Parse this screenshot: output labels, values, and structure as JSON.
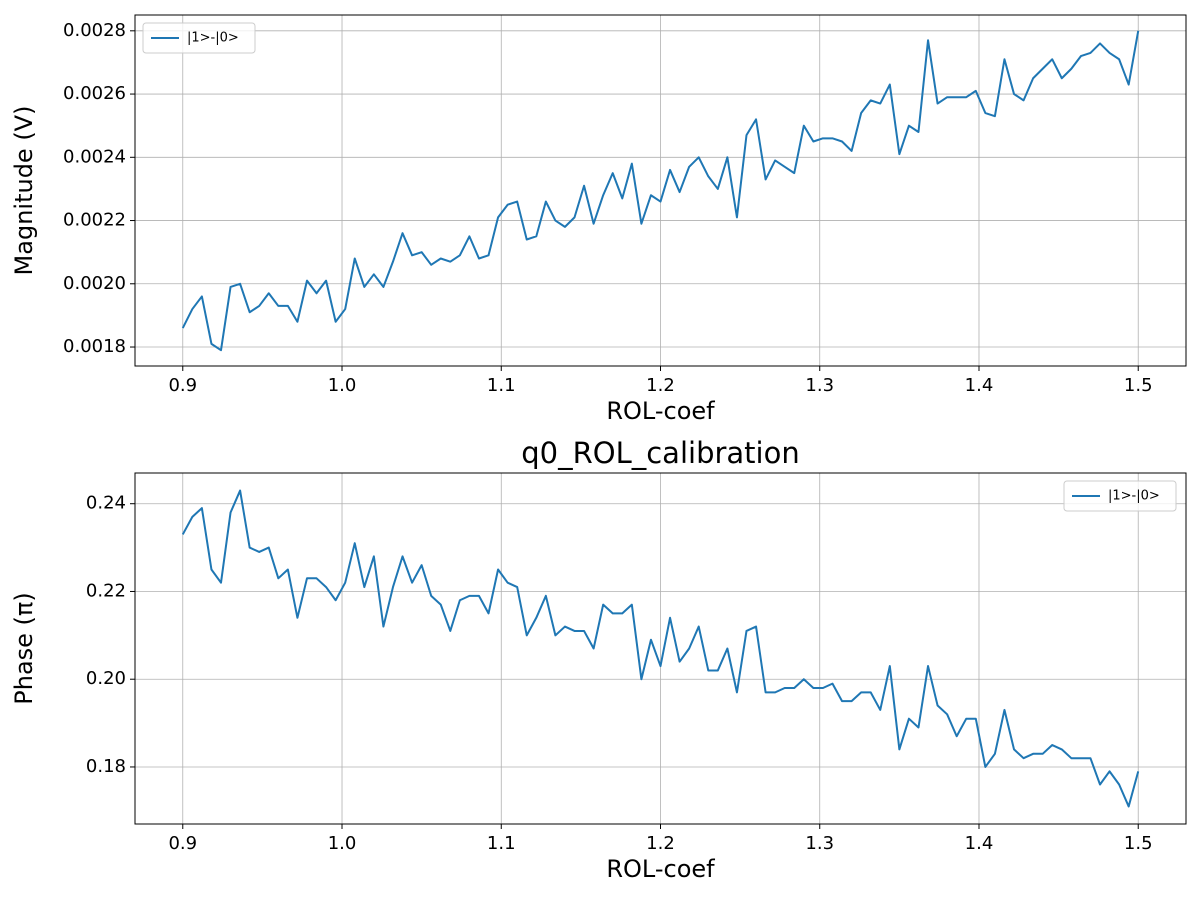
{
  "chart_data": [
    {
      "type": "line",
      "xlabel": "ROL-coef",
      "ylabel": "Magnitude (V)",
      "legend": "upper left",
      "grid": true,
      "xlim": [
        0.87,
        1.53
      ],
      "xticks": [
        0.9,
        {
          "value": 1,
          "label": "1.0"
        },
        1.1,
        1.2,
        1.3,
        1.4,
        1.5
      ],
      "ylim": [
        0.00174,
        0.00285
      ],
      "yticks": [
        0.0018,
        {
          "value": 0.002,
          "label": "0.0020"
        },
        0.0022,
        0.0024,
        0.0026,
        0.0028
      ],
      "x": [
        0.9,
        0.906,
        0.912,
        0.918,
        0.924,
        0.93,
        0.936,
        0.942,
        0.948,
        0.954,
        0.96,
        0.966,
        0.972,
        0.978,
        0.984,
        0.99,
        0.996,
        1.002,
        1.008,
        1.014,
        1.02,
        1.026,
        1.032,
        1.038,
        1.044,
        1.05,
        1.056,
        1.062,
        1.068,
        1.074,
        1.08,
        1.086,
        1.092,
        1.098,
        1.104,
        1.11,
        1.116,
        1.122,
        1.128,
        1.134,
        1.14,
        1.146,
        1.152,
        1.158,
        1.164,
        1.17,
        1.176,
        1.182,
        1.188,
        1.194,
        1.2,
        1.206,
        1.212,
        1.218,
        1.224,
        1.23,
        1.236,
        1.242,
        1.248,
        1.254,
        1.26,
        1.266,
        1.272,
        1.278,
        1.284,
        1.29,
        1.296,
        1.302,
        1.308,
        1.314,
        1.32,
        1.326,
        1.332,
        1.338,
        1.344,
        1.35,
        1.356,
        1.362,
        1.368,
        1.374,
        1.38,
        1.386,
        1.392,
        1.398,
        1.404,
        1.41,
        1.416,
        1.422,
        1.428,
        1.434,
        1.44,
        1.446,
        1.452,
        1.458,
        1.464,
        1.47,
        1.476,
        1.482,
        1.488,
        1.494,
        1.5
      ],
      "series": [
        {
          "name": "|1>-|0>",
          "color": "#1f77b4",
          "values": [
            0.00186,
            0.00192,
            0.00196,
            0.00181,
            0.00179,
            0.00199,
            0.002,
            0.00191,
            0.00193,
            0.00197,
            0.00193,
            0.00193,
            0.00188,
            0.00201,
            0.00197,
            0.00201,
            0.00188,
            0.00192,
            0.00208,
            0.00199,
            0.00203,
            0.00199,
            0.00207,
            0.00216,
            0.00209,
            0.0021,
            0.00206,
            0.00208,
            0.00207,
            0.00209,
            0.00215,
            0.00208,
            0.00209,
            0.00221,
            0.00225,
            0.00226,
            0.00214,
            0.00215,
            0.00226,
            0.0022,
            0.00218,
            0.00221,
            0.00231,
            0.00219,
            0.00228,
            0.00235,
            0.00227,
            0.00238,
            0.00219,
            0.00228,
            0.00226,
            0.00236,
            0.00229,
            0.00237,
            0.0024,
            0.00234,
            0.0023,
            0.0024,
            0.00221,
            0.00247,
            0.00252,
            0.00233,
            0.00239,
            0.00237,
            0.00235,
            0.0025,
            0.00245,
            0.00246,
            0.00246,
            0.00245,
            0.00242,
            0.00254,
            0.00258,
            0.00257,
            0.00263,
            0.00241,
            0.0025,
            0.00248,
            0.00277,
            0.00257,
            0.00259,
            0.00259,
            0.00259,
            0.00261,
            0.00254,
            0.00253,
            0.00271,
            0.0026,
            0.00258,
            0.00265,
            0.00268,
            0.00271,
            0.00265,
            0.00268,
            0.00272,
            0.00273,
            0.00276,
            0.00273,
            0.00271,
            0.00263,
            0.0028
          ]
        }
      ]
    },
    {
      "type": "line",
      "title": "q0_ROL_calibration",
      "xlabel": "ROL-coef",
      "ylabel": "Phase (π)",
      "legend": "upper right",
      "grid": true,
      "xlim": [
        0.87,
        1.53
      ],
      "xticks": [
        0.9,
        {
          "value": 1,
          "label": "1.0"
        },
        1.1,
        1.2,
        1.3,
        1.4,
        1.5
      ],
      "ylim": [
        0.167,
        0.247
      ],
      "yticks": [
        0.18,
        {
          "value": 0.2,
          "label": "0.20"
        },
        0.22,
        0.24
      ],
      "x": [
        0.9,
        0.906,
        0.912,
        0.918,
        0.924,
        0.93,
        0.936,
        0.942,
        0.948,
        0.954,
        0.96,
        0.966,
        0.972,
        0.978,
        0.984,
        0.99,
        0.996,
        1.002,
        1.008,
        1.014,
        1.02,
        1.026,
        1.032,
        1.038,
        1.044,
        1.05,
        1.056,
        1.062,
        1.068,
        1.074,
        1.08,
        1.086,
        1.092,
        1.098,
        1.104,
        1.11,
        1.116,
        1.122,
        1.128,
        1.134,
        1.14,
        1.146,
        1.152,
        1.158,
        1.164,
        1.17,
        1.176,
        1.182,
        1.188,
        1.194,
        1.2,
        1.206,
        1.212,
        1.218,
        1.224,
        1.23,
        1.236,
        1.242,
        1.248,
        1.254,
        1.26,
        1.266,
        1.272,
        1.278,
        1.284,
        1.29,
        1.296,
        1.302,
        1.308,
        1.314,
        1.32,
        1.326,
        1.332,
        1.338,
        1.344,
        1.35,
        1.356,
        1.362,
        1.368,
        1.374,
        1.38,
        1.386,
        1.392,
        1.398,
        1.404,
        1.41,
        1.416,
        1.422,
        1.428,
        1.434,
        1.44,
        1.446,
        1.452,
        1.458,
        1.464,
        1.47,
        1.476,
        1.482,
        1.488,
        1.494,
        1.5
      ],
      "series": [
        {
          "name": "|1>-|0>",
          "color": "#1f77b4",
          "values": [
            0.233,
            0.237,
            0.239,
            0.225,
            0.222,
            0.238,
            0.243,
            0.23,
            0.229,
            0.23,
            0.223,
            0.225,
            0.214,
            0.223,
            0.223,
            0.221,
            0.218,
            0.222,
            0.231,
            0.221,
            0.228,
            0.212,
            0.221,
            0.228,
            0.222,
            0.226,
            0.219,
            0.217,
            0.211,
            0.218,
            0.219,
            0.219,
            0.215,
            0.225,
            0.222,
            0.221,
            0.21,
            0.214,
            0.219,
            0.21,
            0.212,
            0.211,
            0.211,
            0.207,
            0.217,
            0.215,
            0.215,
            0.217,
            0.2,
            0.209,
            0.203,
            0.214,
            0.204,
            0.207,
            0.212,
            0.202,
            0.202,
            0.207,
            0.197,
            0.211,
            0.212,
            0.197,
            0.197,
            0.198,
            0.198,
            0.2,
            0.198,
            0.198,
            0.199,
            0.195,
            0.195,
            0.197,
            0.197,
            0.193,
            0.203,
            0.184,
            0.191,
            0.189,
            0.203,
            0.194,
            0.192,
            0.187,
            0.191,
            0.191,
            0.18,
            0.183,
            0.193,
            0.184,
            0.182,
            0.183,
            0.183,
            0.185,
            0.184,
            0.182,
            0.182,
            0.182,
            0.176,
            0.179,
            0.176,
            0.171,
            0.179
          ]
        }
      ]
    }
  ]
}
